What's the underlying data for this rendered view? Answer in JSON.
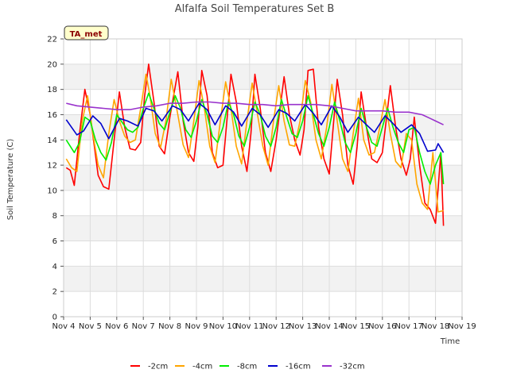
{
  "chart_data": {
    "type": "line",
    "title": "Alfalfa Soil Temperatures Set B",
    "xlabel": "Time",
    "ylabel": "Soil Temperature (C)",
    "badge": "TA_met",
    "xlim": [
      4,
      19
    ],
    "ylim": [
      0,
      22
    ],
    "x_ticks": [
      {
        "value": 4,
        "label": "Nov 4"
      },
      {
        "value": 5,
        "label": "Nov 5"
      },
      {
        "value": 6,
        "label": "Nov 6"
      },
      {
        "value": 7,
        "label": "Nov 7"
      },
      {
        "value": 8,
        "label": "Nov 8"
      },
      {
        "value": 9,
        "label": "Nov 9"
      },
      {
        "value": 10,
        "label": "Nov 10"
      },
      {
        "value": 11,
        "label": "Nov 11"
      },
      {
        "value": 12,
        "label": "Nov 12"
      },
      {
        "value": 13,
        "label": "Nov 13"
      },
      {
        "value": 14,
        "label": "Nov 14"
      },
      {
        "value": 15,
        "label": "Nov 15"
      },
      {
        "value": 16,
        "label": "Nov 16"
      },
      {
        "value": 17,
        "label": "Nov 17"
      },
      {
        "value": 18,
        "label": "Nov 18"
      },
      {
        "value": 19,
        "label": "Nov 19"
      }
    ],
    "y_ticks": [
      0,
      2,
      4,
      6,
      8,
      10,
      12,
      14,
      16,
      18,
      20,
      22
    ],
    "grid": true,
    "band_colors": [
      "#ffffff",
      "#f2f2f2"
    ],
    "legend_position": "bottom",
    "series": [
      {
        "name": "-2cm",
        "color": "#ff0000",
        "x": [
          4.1,
          4.25,
          4.4,
          4.6,
          4.8,
          5.0,
          5.3,
          5.5,
          5.7,
          5.9,
          6.1,
          6.3,
          6.5,
          6.7,
          6.9,
          7.05,
          7.2,
          7.4,
          7.6,
          7.8,
          8.0,
          8.3,
          8.5,
          8.7,
          8.9,
          9.05,
          9.2,
          9.4,
          9.6,
          9.8,
          10.0,
          10.3,
          10.5,
          10.7,
          10.9,
          11.05,
          11.2,
          11.4,
          11.6,
          11.8,
          12.0,
          12.3,
          12.5,
          12.7,
          12.9,
          13.05,
          13.2,
          13.4,
          13.6,
          13.8,
          14.0,
          14.3,
          14.5,
          14.7,
          14.9,
          15.05,
          15.2,
          15.4,
          15.6,
          15.8,
          16.0,
          16.3,
          16.5,
          16.7,
          16.9,
          17.05,
          17.2,
          17.4,
          17.6,
          17.8,
          18.0,
          18.2,
          18.3
        ],
        "values": [
          11.8,
          11.6,
          10.4,
          14.5,
          18.0,
          16.0,
          11.2,
          10.3,
          10.1,
          14.0,
          17.8,
          15.0,
          13.3,
          13.2,
          13.8,
          17.5,
          20.0,
          17.0,
          13.5,
          12.9,
          15.8,
          19.4,
          15.5,
          13.0,
          12.3,
          15.0,
          19.5,
          17.5,
          13.0,
          11.8,
          12.0,
          19.2,
          17.0,
          13.5,
          11.5,
          14.5,
          19.2,
          16.5,
          13.0,
          11.5,
          14.0,
          19.0,
          16.0,
          14.0,
          12.8,
          14.8,
          19.5,
          19.6,
          15.0,
          12.5,
          11.3,
          18.8,
          16.0,
          12.0,
          10.5,
          13.5,
          17.8,
          15.0,
          12.5,
          12.2,
          13.0,
          18.3,
          15.0,
          12.5,
          11.2,
          12.5,
          15.8,
          12.0,
          9.0,
          8.5,
          7.4,
          13.0,
          7.2
        ]
      },
      {
        "name": "-4cm",
        "color": "#ffa500",
        "x": [
          4.1,
          4.3,
          4.5,
          4.7,
          4.9,
          5.1,
          5.3,
          5.5,
          5.7,
          5.9,
          6.1,
          6.3,
          6.5,
          6.7,
          6.9,
          7.1,
          7.25,
          7.45,
          7.65,
          7.85,
          8.05,
          8.3,
          8.5,
          8.7,
          8.9,
          9.1,
          9.3,
          9.5,
          9.7,
          9.9,
          10.1,
          10.3,
          10.5,
          10.7,
          10.9,
          11.1,
          11.3,
          11.5,
          11.7,
          11.9,
          12.1,
          12.3,
          12.5,
          12.7,
          12.9,
          13.1,
          13.3,
          13.5,
          13.7,
          13.9,
          14.1,
          14.3,
          14.5,
          14.7,
          14.9,
          15.1,
          15.3,
          15.5,
          15.7,
          15.9,
          16.1,
          16.3,
          16.5,
          16.7,
          16.9,
          17.1,
          17.3,
          17.5,
          17.7,
          17.9,
          18.1,
          18.3
        ],
        "values": [
          12.5,
          11.8,
          11.5,
          15.5,
          17.5,
          14.5,
          12.0,
          11.0,
          14.5,
          17.2,
          15.5,
          14.3,
          13.8,
          14.0,
          16.5,
          19.2,
          17.5,
          14.5,
          13.4,
          15.5,
          18.8,
          16.0,
          13.6,
          12.6,
          15.5,
          18.7,
          16.5,
          13.5,
          12.2,
          15.5,
          18.6,
          16.5,
          13.5,
          12.1,
          15.5,
          18.5,
          16.0,
          13.5,
          12.0,
          15.5,
          18.3,
          15.5,
          13.6,
          13.5,
          15.5,
          18.7,
          17.0,
          14.0,
          12.5,
          15.0,
          18.4,
          15.5,
          12.5,
          11.5,
          14.5,
          17.3,
          14.0,
          12.8,
          13.0,
          15.0,
          17.2,
          14.5,
          12.3,
          11.8,
          14.5,
          14.0,
          10.5,
          9.0,
          8.5,
          13.0,
          8.3,
          8.4
        ]
      },
      {
        "name": "-8cm",
        "color": "#00ee00",
        "x": [
          4.1,
          4.4,
          4.6,
          4.8,
          5.0,
          5.2,
          5.4,
          5.6,
          5.8,
          6.0,
          6.2,
          6.4,
          6.6,
          6.8,
          7.0,
          7.2,
          7.4,
          7.6,
          7.8,
          8.0,
          8.2,
          8.4,
          8.6,
          8.8,
          9.0,
          9.2,
          9.4,
          9.6,
          9.8,
          10.0,
          10.2,
          10.4,
          10.6,
          10.8,
          11.0,
          11.2,
          11.4,
          11.6,
          11.8,
          12.0,
          12.2,
          12.4,
          12.6,
          12.8,
          13.0,
          13.2,
          13.4,
          13.6,
          13.8,
          14.0,
          14.2,
          14.4,
          14.6,
          14.8,
          15.0,
          15.2,
          15.4,
          15.6,
          15.8,
          16.0,
          16.2,
          16.4,
          16.6,
          16.8,
          17.0,
          17.2,
          17.4,
          17.6,
          17.8,
          18.0,
          18.2,
          18.3
        ],
        "values": [
          14.0,
          13.0,
          13.8,
          15.8,
          15.5,
          14.0,
          13.0,
          12.4,
          13.8,
          16.0,
          15.4,
          14.8,
          14.6,
          15.0,
          16.5,
          17.7,
          16.5,
          15.3,
          14.8,
          16.2,
          17.5,
          16.5,
          14.8,
          14.2,
          15.5,
          17.2,
          16.0,
          14.3,
          13.8,
          15.0,
          17.0,
          16.0,
          14.3,
          13.5,
          15.0,
          17.0,
          16.0,
          14.3,
          13.5,
          15.0,
          17.2,
          15.8,
          14.5,
          14.2,
          15.5,
          17.5,
          16.0,
          14.5,
          13.5,
          15.0,
          17.0,
          15.5,
          13.8,
          13.0,
          14.5,
          16.5,
          15.0,
          13.8,
          13.5,
          15.0,
          16.5,
          15.0,
          13.8,
          13.0,
          14.8,
          15.0,
          13.0,
          11.5,
          10.5,
          12.0,
          13.0,
          10.5
        ]
      },
      {
        "name": "-16cm",
        "color": "#0000cd",
        "x": [
          4.1,
          4.5,
          4.75,
          5.1,
          5.4,
          5.7,
          6.1,
          6.4,
          6.8,
          7.1,
          7.4,
          7.7,
          8.1,
          8.4,
          8.7,
          9.1,
          9.4,
          9.7,
          10.1,
          10.4,
          10.7,
          11.1,
          11.4,
          11.7,
          12.1,
          12.4,
          12.7,
          13.1,
          13.4,
          13.7,
          14.1,
          14.4,
          14.7,
          15.1,
          15.4,
          15.7,
          16.1,
          16.4,
          16.7,
          17.1,
          17.4,
          17.7,
          18.0,
          18.1,
          18.3
        ],
        "values": [
          15.6,
          14.4,
          14.7,
          15.9,
          15.3,
          14.1,
          15.7,
          15.5,
          15.1,
          16.5,
          16.3,
          15.5,
          16.7,
          16.4,
          15.5,
          16.9,
          16.4,
          15.2,
          16.7,
          16.2,
          15.1,
          16.5,
          16.0,
          15.0,
          16.4,
          16.1,
          15.5,
          16.8,
          16.1,
          15.2,
          16.7,
          15.8,
          14.6,
          15.8,
          15.2,
          14.6,
          15.9,
          15.3,
          14.6,
          15.2,
          14.5,
          13.1,
          13.2,
          13.7,
          13.0
        ]
      },
      {
        "name": "-32cm",
        "color": "#9932cc",
        "x": [
          4.1,
          4.5,
          5.0,
          5.5,
          6.0,
          6.5,
          7.0,
          7.5,
          8.0,
          8.5,
          9.0,
          9.5,
          10.0,
          10.5,
          11.0,
          11.5,
          12.0,
          12.5,
          13.0,
          13.5,
          14.0,
          14.5,
          15.0,
          15.5,
          16.0,
          16.5,
          17.0,
          17.5,
          17.8,
          18.0,
          18.3
        ],
        "values": [
          16.9,
          16.7,
          16.6,
          16.5,
          16.4,
          16.4,
          16.6,
          16.7,
          16.9,
          16.9,
          17.0,
          17.0,
          16.9,
          16.9,
          16.8,
          16.8,
          16.7,
          16.8,
          16.8,
          16.8,
          16.7,
          16.5,
          16.3,
          16.3,
          16.3,
          16.2,
          16.2,
          16.0,
          15.7,
          15.5,
          15.2
        ]
      }
    ]
  }
}
